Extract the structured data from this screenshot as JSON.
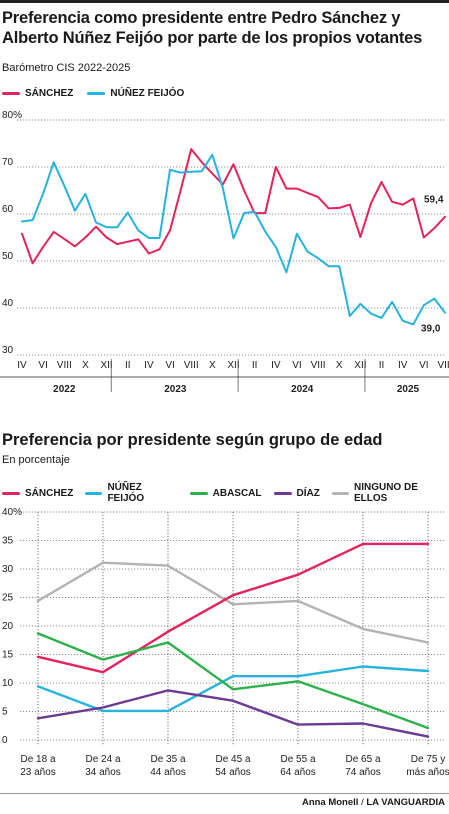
{
  "header": {
    "title": "Preferencia como presidente entre Pedro Sánchez y Alberto Núñez Feijóo por parte de los propios votantes",
    "subtitle": "Barómetro CIS 2022-2025"
  },
  "section2": {
    "title": "Preferencia por presidente según grupo de edad",
    "subtitle": "En porcentaje"
  },
  "credit": {
    "author": "Anna Monell",
    "separator": "/",
    "outlet": "LA VANGUARDIA"
  },
  "colors": {
    "sanchez": "#e3245c",
    "feijoo": "#27b3dc",
    "abascal": "#2eb14a",
    "diaz": "#6c3a94",
    "ninguno": "#b3b3b3"
  },
  "chart_data": [
    {
      "type": "line",
      "ylim": [
        30,
        80
      ],
      "yticks": [
        "30",
        "40",
        "50",
        "60",
        "70",
        "80%"
      ],
      "month_ticks": [
        "IV",
        "VI",
        "VIII",
        "X",
        "XII",
        "II",
        "IV",
        "VI",
        "VIII",
        "X",
        "XII",
        "II",
        "IV",
        "VI",
        "VIII",
        "X",
        "XII",
        "II",
        "IV",
        "VI",
        "VIII"
      ],
      "years": [
        "2022",
        "2023",
        "2024",
        "2025"
      ],
      "legend_position": "top-left",
      "series": [
        {
          "name": "SÁNCHEZ",
          "end_label": "59,4",
          "values": [
            55.8,
            49.5,
            53.0,
            56.2,
            54.7,
            53.1,
            55.0,
            57.3,
            55.0,
            53.6,
            54.1,
            54.6,
            51.6,
            52.5,
            56.5,
            65.0,
            73.8,
            71.0,
            68.6,
            66.3,
            70.6,
            65.0,
            60.2,
            60.2,
            70.0,
            65.4,
            65.4,
            64.5,
            63.6,
            61.2,
            61.3,
            62.0,
            55.1,
            62.3,
            66.8,
            62.6,
            62.0,
            63.3,
            55.0,
            57.0,
            59.4
          ]
        },
        {
          "name": "NÚÑEZ FEIJÓO",
          "end_label": "39,0",
          "values": [
            58.4,
            58.7,
            64.3,
            71.0,
            66.0,
            60.7,
            64.3,
            58.2,
            57.2,
            57.2,
            60.3,
            56.5,
            54.9,
            54.9,
            69.4,
            68.8,
            69.0,
            69.1,
            72.6,
            65.5,
            54.8,
            60.2,
            60.5,
            56.3,
            53.0,
            47.6,
            55.8,
            52.0,
            50.6,
            48.9,
            48.9,
            38.3,
            40.9,
            38.8,
            37.9,
            41.3,
            37.3,
            36.5,
            40.6,
            42.0,
            39.0
          ]
        }
      ]
    },
    {
      "type": "line",
      "ylim": [
        0,
        40
      ],
      "yticks": [
        "0",
        "5",
        "10",
        "15",
        "20",
        "25",
        "30",
        "35",
        "40%"
      ],
      "categories": [
        "De 18 a 23 años",
        "De 24 a 34 años",
        "De 35 a 44 años",
        "De 45 a 54 años",
        "De 55 a 64 años",
        "De 65 a 74 años",
        "De 75 y más años"
      ],
      "category_lines": [
        [
          "De 18 a",
          "23 años"
        ],
        [
          "De 24 a",
          "34 años"
        ],
        [
          "De 35 a",
          "44 años"
        ],
        [
          "De 45 a",
          "54 años"
        ],
        [
          "De 55 a",
          "64 años"
        ],
        [
          "De 65 a",
          "74 años"
        ],
        [
          "De 75 y",
          "más años"
        ]
      ],
      "legend_position": "top-left",
      "series": [
        {
          "name": "SÁNCHEZ",
          "x": [
            0,
            1,
            2,
            3,
            4,
            5,
            5.5,
            6
          ],
          "values": [
            14.6,
            11.9,
            19.0,
            25.4,
            29.0,
            34.4,
            34.4,
            34.4
          ]
        },
        {
          "name": "NÚÑEZ FEIJÓO",
          "x": [
            0,
            1,
            2,
            3,
            4,
            5,
            6
          ],
          "values": [
            9.4,
            5.1,
            5.1,
            11.2,
            11.2,
            12.9,
            12.1
          ]
        },
        {
          "name": "ABASCAL",
          "x": [
            0,
            1,
            2,
            3,
            4,
            5,
            6
          ],
          "values": [
            18.7,
            14.1,
            17.1,
            8.9,
            10.3,
            6.3,
            2.1
          ]
        },
        {
          "name": "DÍAZ",
          "x": [
            0,
            1,
            2,
            3,
            4,
            5,
            6
          ],
          "values": [
            3.8,
            5.7,
            8.7,
            6.9,
            2.7,
            2.9,
            0.6
          ]
        },
        {
          "name": "NINGUNO DE ELLOS",
          "x": [
            0,
            1,
            2,
            3,
            4,
            5,
            6
          ],
          "values": [
            24.4,
            31.1,
            30.6,
            23.8,
            24.4,
            19.5,
            17.1
          ]
        }
      ]
    }
  ]
}
